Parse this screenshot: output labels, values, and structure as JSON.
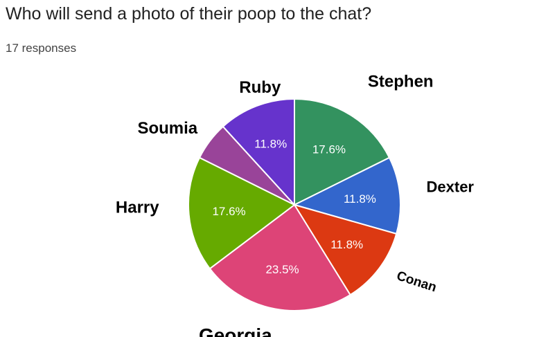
{
  "header": {
    "question": "Who will send a photo of their poop to the chat?",
    "responses": "17 responses"
  },
  "chart_data": {
    "type": "pie",
    "total_responses": 17,
    "slices": [
      {
        "name": "Stephen",
        "value": 3,
        "percent_label": "17.6%",
        "color": "#33925f"
      },
      {
        "name": "Dexter",
        "value": 2,
        "percent_label": "11.8%",
        "color": "#3366cc"
      },
      {
        "name": "Conan",
        "value": 2,
        "percent_label": "11.8%",
        "color": "#dc3912"
      },
      {
        "name": "Georgia",
        "value": 4,
        "percent_label": "23.5%",
        "color": "#dd4477"
      },
      {
        "name": "Harry",
        "value": 3,
        "percent_label": "17.6%",
        "color": "#66aa00"
      },
      {
        "name": "Soumia",
        "value": 1,
        "percent_label": "",
        "color": "#994499"
      },
      {
        "name": "Ruby",
        "value": 2,
        "percent_label": "11.8%",
        "color": "#6633cc"
      }
    ]
  }
}
